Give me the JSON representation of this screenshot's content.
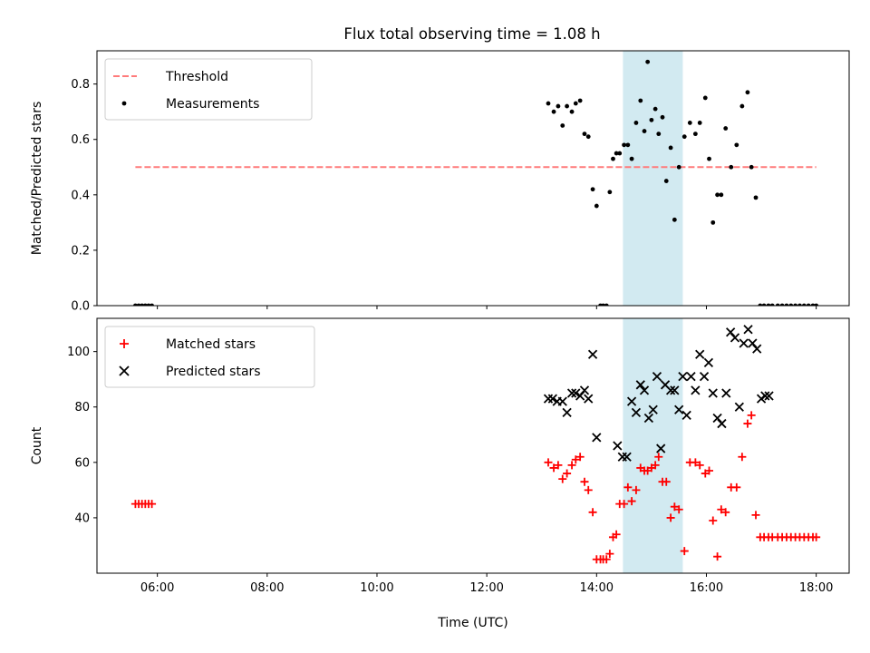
{
  "chart_data": [
    {
      "type": "scatter",
      "title": "Flux total observing time = 1.08 h",
      "xlabel": "",
      "ylabel": "Matched/Predicted stars",
      "xlim": [
        4.9,
        18.6
      ],
      "ylim": [
        0.0,
        0.92
      ],
      "yticks": [
        0.0,
        0.2,
        0.4,
        0.6,
        0.8
      ],
      "ytick_labels": [
        "0.0",
        "0.2",
        "0.4",
        "0.6",
        "0.8"
      ],
      "highlight_band": {
        "x": [
          14.48,
          15.57
        ],
        "color": "#add8e6"
      },
      "legend_position": "top-left",
      "series": [
        {
          "name": "Threshold",
          "kind": "dashed-line",
          "color": "#ff7b7b",
          "x": [
            5.6,
            18.0
          ],
          "y": [
            0.5,
            0.5
          ]
        },
        {
          "name": "Measurements",
          "kind": "dot",
          "color": "#000000",
          "x": [
            5.6,
            5.66,
            5.72,
            5.78,
            5.84,
            5.9,
            13.12,
            13.22,
            13.3,
            13.38,
            13.46,
            13.55,
            13.62,
            13.7,
            13.78,
            13.85,
            13.93,
            14.0,
            14.07,
            14.12,
            14.18,
            14.24,
            14.3,
            14.36,
            14.42,
            14.5,
            14.57,
            14.64,
            14.72,
            14.8,
            14.87,
            14.93,
            15.0,
            15.07,
            15.13,
            15.2,
            15.27,
            15.35,
            15.42,
            15.5,
            15.6,
            15.7,
            15.8,
            15.88,
            15.98,
            16.05,
            16.12,
            16.2,
            16.27,
            16.35,
            16.45,
            16.55,
            16.65,
            16.75,
            16.82,
            16.9,
            16.98,
            17.05,
            17.13,
            17.2,
            17.3,
            17.38,
            17.46,
            17.54,
            17.62,
            17.7,
            17.78,
            17.86,
            17.94,
            18.0
          ],
          "y": [
            0.0,
            0.0,
            0.0,
            0.0,
            0.0,
            0.0,
            0.73,
            0.7,
            0.72,
            0.65,
            0.72,
            0.7,
            0.73,
            0.74,
            0.62,
            0.61,
            0.42,
            0.36,
            0.0,
            0.0,
            0.0,
            0.41,
            0.53,
            0.55,
            0.55,
            0.58,
            0.58,
            0.53,
            0.66,
            0.74,
            0.63,
            0.88,
            0.67,
            0.71,
            0.62,
            0.68,
            0.45,
            0.57,
            0.31,
            0.5,
            0.61,
            0.66,
            0.62,
            0.66,
            0.75,
            0.53,
            0.3,
            0.4,
            0.4,
            0.64,
            0.5,
            0.58,
            0.72,
            0.77,
            0.5,
            0.39,
            0.0,
            0.0,
            0.0,
            0.0,
            0.0,
            0.0,
            0.0,
            0.0,
            0.0,
            0.0,
            0.0,
            0.0,
            0.0,
            0.0
          ]
        }
      ]
    },
    {
      "type": "scatter",
      "title": "",
      "xlabel": "Time (UTC)",
      "ylabel": "Count",
      "xlim": [
        4.9,
        18.6
      ],
      "ylim": [
        20,
        112
      ],
      "xticks": [
        6,
        8,
        10,
        12,
        14,
        16,
        18
      ],
      "xtick_labels": [
        "06:00",
        "08:00",
        "10:00",
        "12:00",
        "14:00",
        "16:00",
        "18:00"
      ],
      "yticks": [
        40,
        60,
        80,
        100
      ],
      "ytick_labels": [
        "40",
        "60",
        "80",
        "100"
      ],
      "highlight_band": {
        "x": [
          14.48,
          15.57
        ],
        "color": "#add8e6"
      },
      "legend_position": "top-left",
      "series": [
        {
          "name": "Matched stars",
          "marker": "plus",
          "color": "#ff0000",
          "x": [
            5.6,
            5.66,
            5.72,
            5.78,
            5.84,
            5.9,
            13.12,
            13.22,
            13.3,
            13.38,
            13.46,
            13.55,
            13.62,
            13.7,
            13.78,
            13.85,
            13.93,
            14.0,
            14.07,
            14.12,
            14.18,
            14.24,
            14.3,
            14.36,
            14.42,
            14.5,
            14.57,
            14.64,
            14.72,
            14.8,
            14.87,
            14.93,
            15.0,
            15.07,
            15.13,
            15.2,
            15.27,
            15.35,
            15.42,
            15.5,
            15.6,
            15.7,
            15.8,
            15.88,
            15.98,
            16.05,
            16.12,
            16.2,
            16.27,
            16.35,
            16.45,
            16.55,
            16.65,
            16.75,
            16.82,
            16.9,
            16.98,
            17.05,
            17.13,
            17.2,
            17.3,
            17.38,
            17.46,
            17.54,
            17.62,
            17.7,
            17.78,
            17.86,
            17.94,
            18.0
          ],
          "y": [
            45,
            45,
            45,
            45,
            45,
            45,
            60,
            58,
            59,
            54,
            56,
            59,
            61,
            62,
            53,
            50,
            42,
            25,
            25,
            25,
            25,
            27,
            33,
            34,
            45,
            45,
            51,
            46,
            50,
            58,
            57,
            57,
            58,
            59,
            62,
            53,
            53,
            40,
            44,
            43,
            28,
            60,
            60,
            59,
            56,
            57,
            39,
            26,
            43,
            42,
            51,
            51,
            62,
            74,
            77,
            41,
            33,
            33,
            33,
            33,
            33,
            33,
            33,
            33,
            33,
            33,
            33,
            33,
            33,
            33
          ]
        },
        {
          "name": "Predicted stars",
          "marker": "x",
          "color": "#000000",
          "x": [
            13.12,
            13.2,
            13.28,
            13.38,
            13.46,
            13.55,
            13.62,
            13.7,
            13.78,
            13.85,
            13.93,
            14.0,
            14.38,
            14.47,
            14.55,
            14.64,
            14.72,
            14.8,
            14.87,
            14.95,
            15.03,
            15.1,
            15.17,
            15.25,
            15.35,
            15.42,
            15.5,
            15.57,
            15.64,
            15.72,
            15.8,
            15.88,
            15.96,
            16.04,
            16.12,
            16.2,
            16.28,
            16.36,
            16.44,
            16.52,
            16.6,
            16.68,
            16.76,
            16.84,
            16.92,
            17.0,
            17.07,
            17.14
          ],
          "y": [
            83,
            83,
            82,
            82,
            78,
            85,
            85,
            84,
            86,
            83,
            99,
            69,
            66,
            62,
            62,
            82,
            78,
            88,
            86,
            76,
            79,
            91,
            65,
            88,
            86,
            86,
            79,
            91,
            77,
            91,
            86,
            99,
            91,
            96,
            85,
            76,
            74,
            85,
            107,
            105,
            80,
            103,
            108,
            103,
            101,
            83,
            84,
            84
          ]
        }
      ]
    }
  ]
}
